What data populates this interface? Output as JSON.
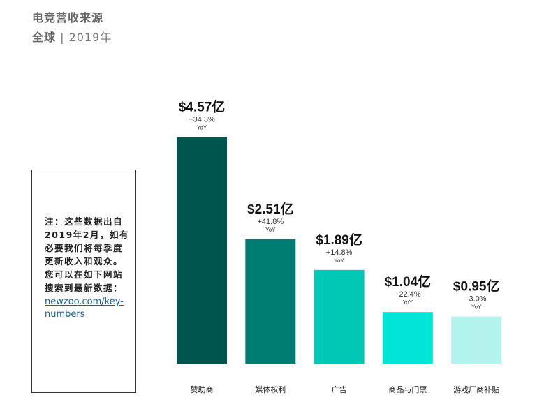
{
  "header": {
    "title": "电竞营收来源",
    "region": "全球",
    "separator": "|",
    "year": "2019年"
  },
  "note": {
    "text": "注：这些数据出自2019年2月，如有必要我们将每季度更新收入和观众。您可以在如下网站搜索到最新数据：",
    "link": "newzoo.com/key-numbers"
  },
  "chart_data": {
    "type": "bar",
    "title": "电竞营收来源",
    "categories": [
      "赞助商",
      "媒体权利",
      "广告",
      "商品与门票",
      "游戏厂商补贴"
    ],
    "values": [
      4.57,
      2.51,
      1.89,
      1.04,
      0.95
    ],
    "unit": "亿美元",
    "value_labels": [
      "$4.57亿",
      "$2.51亿",
      "$1.89亿",
      "$1.04亿",
      "$0.95亿"
    ],
    "yoy_labels": [
      "+34.3%",
      "+41.8%",
      "+14.8%",
      "+22.4%",
      "-3.0%"
    ],
    "yoy_suffix": "YoY",
    "colors": [
      "#00564f",
      "#007d72",
      "#00c8b5",
      "#00e5d6",
      "#b3f3ee"
    ],
    "grid": false,
    "legend": "none"
  }
}
